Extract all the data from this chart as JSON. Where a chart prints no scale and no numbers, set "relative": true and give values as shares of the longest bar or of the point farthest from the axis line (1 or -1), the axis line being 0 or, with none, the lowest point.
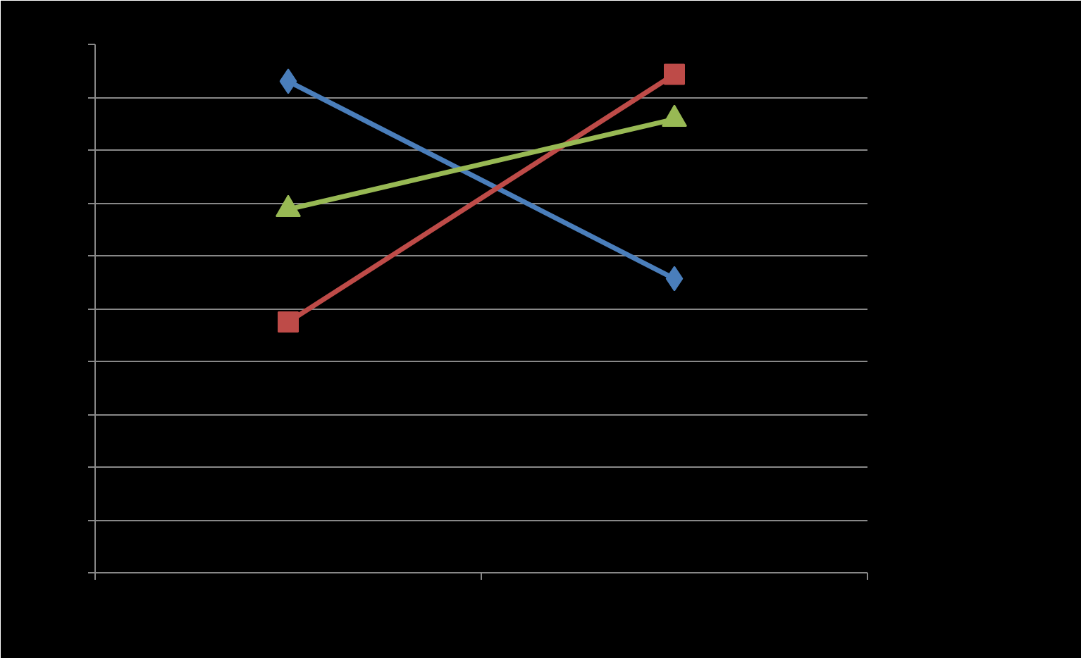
{
  "chart_data": {
    "type": "line",
    "relative": true,
    "categories": [
      null,
      null
    ],
    "grid": "y",
    "series": [
      {
        "color": "#4a7ebb",
        "marker": "diamond",
        "values": [
          0.986,
          0.59
        ]
      },
      {
        "color": "#be4b48",
        "marker": "square",
        "values": [
          0.503,
          1
        ]
      },
      {
        "color": "#98b954",
        "marker": "triangle",
        "values": [
          0.729,
          0.91
        ]
      }
    ]
  }
}
